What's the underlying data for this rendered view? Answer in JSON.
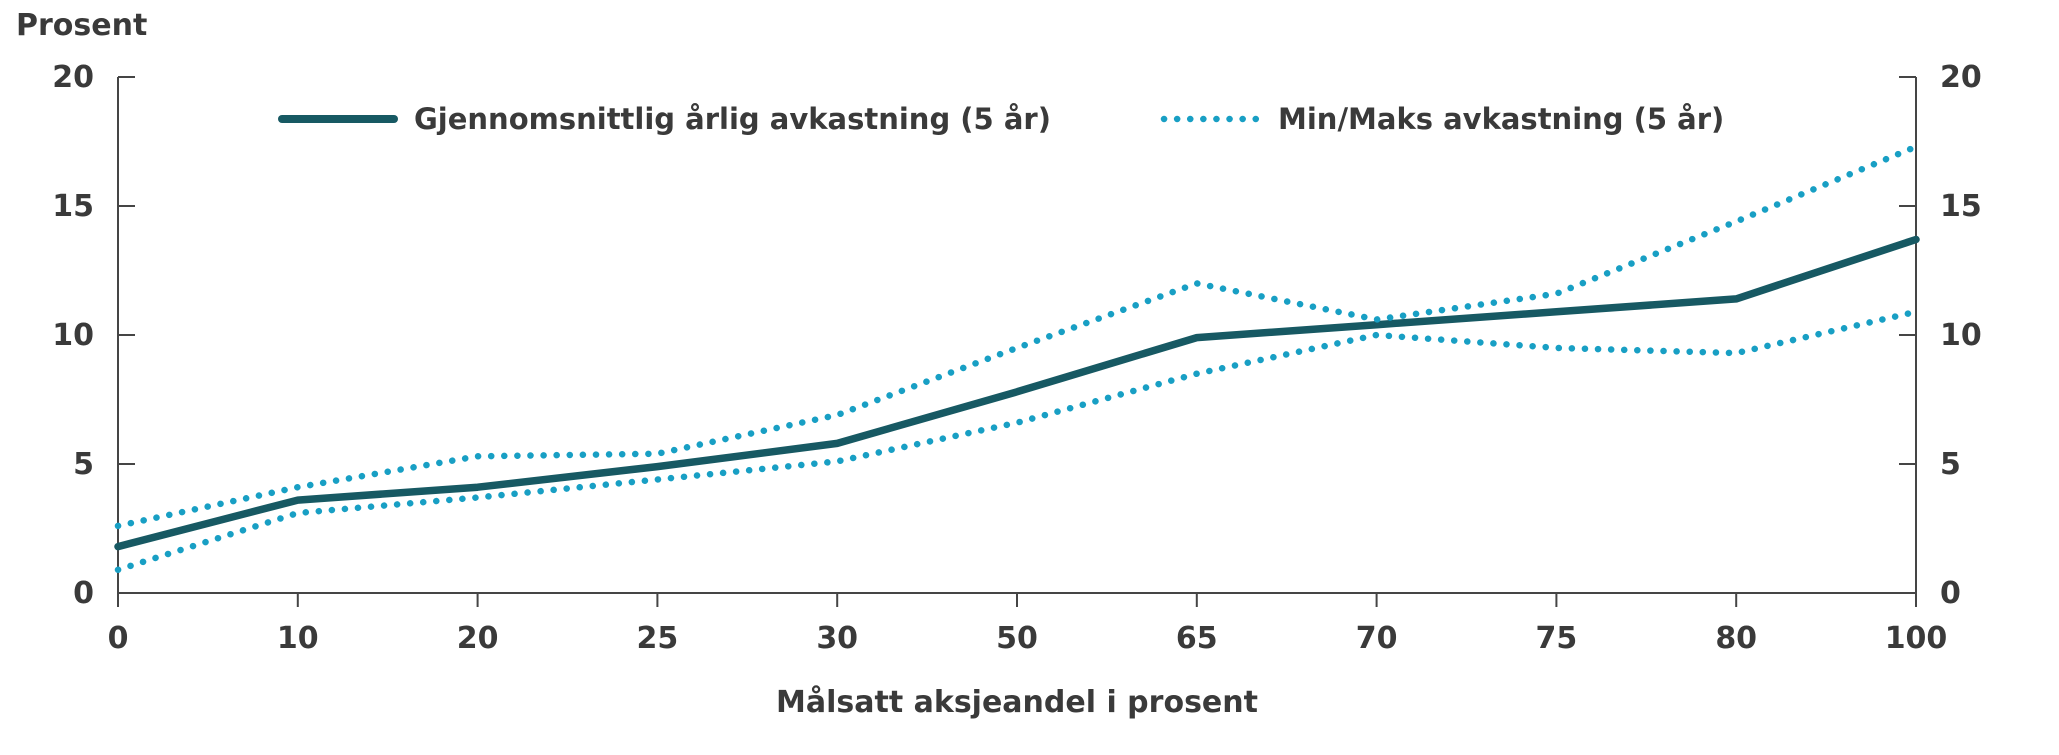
{
  "page": {
    "background": "#ffffff"
  },
  "titles": {
    "y_axis_title": "Prosent",
    "x_axis_title": "Målsatt aksjeandel i prosent"
  },
  "legend": [
    {
      "label": "Gjennomsnittlig årlig avkastning (5 år)",
      "style": "solid",
      "color": "#175963"
    },
    {
      "label": "Min/Maks avkastning (5 år)",
      "style": "dotted",
      "color": "#189fc4"
    }
  ],
  "colors": {
    "average_line": "#175963",
    "minmax_line": "#189fc4",
    "axis": "#454545",
    "text": "#3a3a3a",
    "background": "#ffffff"
  },
  "chart_data": {
    "type": "line",
    "title": "",
    "xlabel": "Målsatt aksjeandel i prosent",
    "ylabel": "Prosent",
    "categories": [
      "0",
      "10",
      "20",
      "25",
      "30",
      "50",
      "65",
      "70",
      "75",
      "80",
      "100"
    ],
    "series": [
      {
        "name": "Gjennomsnittlig årlig avkastning (5 år)",
        "style": "solid",
        "color": "#175963",
        "values": [
          1.8,
          3.6,
          4.1,
          4.9,
          5.8,
          7.8,
          9.9,
          10.4,
          10.9,
          11.4,
          13.7
        ]
      },
      {
        "name": "Maks avkastning (5 år)",
        "style": "dotted",
        "color": "#189fc4",
        "values": [
          2.6,
          4.1,
          5.3,
          5.4,
          6.9,
          9.5,
          12.0,
          10.6,
          11.6,
          14.4,
          17.3
        ]
      },
      {
        "name": "Min avkastning (5 år)",
        "style": "dotted",
        "color": "#189fc4",
        "values": [
          0.9,
          3.1,
          3.7,
          4.4,
          5.1,
          6.6,
          8.5,
          10.0,
          9.5,
          9.3,
          10.9
        ]
      }
    ],
    "ylim": [
      0,
      20
    ],
    "yticks": [
      0,
      5,
      10,
      15,
      20
    ],
    "ytick_labels_sides": "both",
    "grid": false,
    "legend_position": "top-inside"
  }
}
